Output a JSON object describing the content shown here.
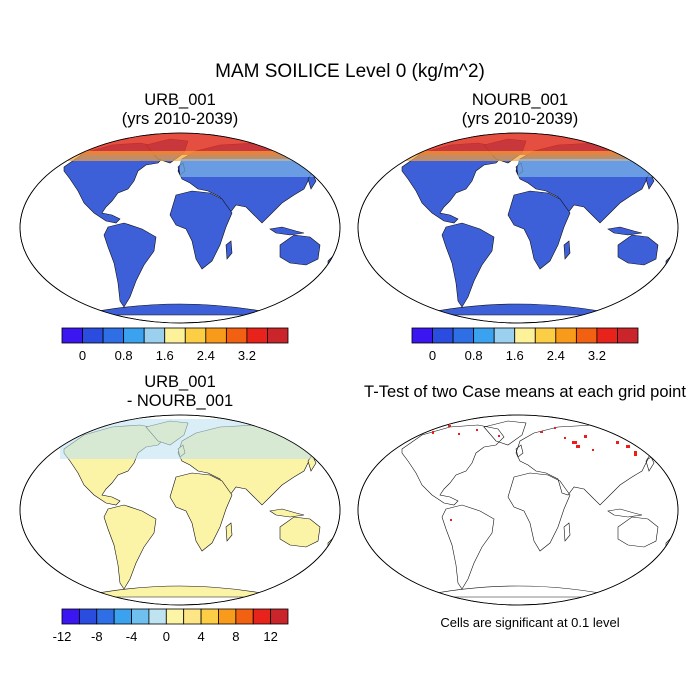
{
  "title": "MAM SOILICE Level 0 (kg/m^2)",
  "panels": {
    "urb": {
      "title_line1": "URB_001",
      "title_line2": "(yrs 2010-2039)"
    },
    "nourb": {
      "title_line1": "NOURB_001",
      "title_line2": "(yrs 2010-2039)"
    },
    "diff": {
      "title_line1": "URB_001",
      "title_line2": "- NOURB_001"
    },
    "ttest": {
      "title": "T-Test of two Case means at each grid point",
      "note": "Cells are significant at 0.1 level"
    }
  },
  "colorbars": {
    "top": {
      "colors": [
        "#3b16f0",
        "#2a4de0",
        "#2f6fe6",
        "#3aa2ef",
        "#9bd1ef",
        "#fdf19a",
        "#fbce45",
        "#f99b1a",
        "#f26012",
        "#e8231c",
        "#c9252b"
      ],
      "tick_labels": [
        "0",
        "0.8",
        "1.6",
        "2.4",
        "3.2"
      ]
    },
    "bottom": {
      "colors": [
        "#3b16f0",
        "#2a4de0",
        "#2f6fe6",
        "#3aa2ef",
        "#6fc0ee",
        "#bfe3f0",
        "#fdf5a6",
        "#fde685",
        "#fbce45",
        "#f99b1a",
        "#f26012",
        "#e8231c",
        "#c9252b"
      ],
      "tick_labels": [
        "-12",
        "-8",
        "-4",
        "0",
        "4",
        "8",
        "12"
      ]
    }
  }
}
